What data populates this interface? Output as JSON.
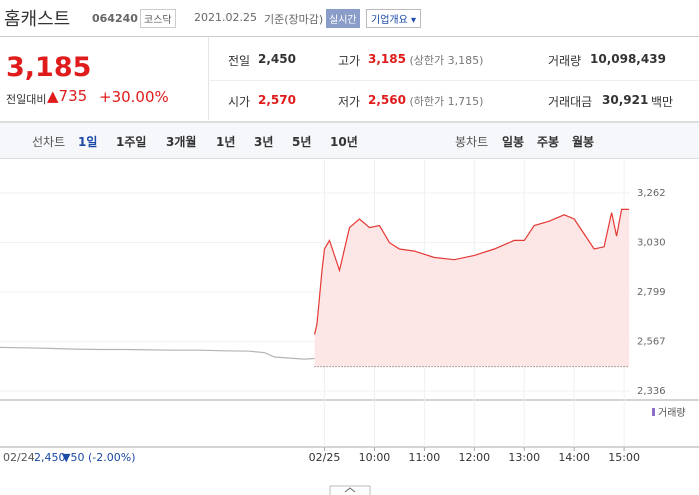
{
  "header": {
    "name": "홈캐스트",
    "code": "064240",
    "market": "코스닥",
    "date": "2021.02.25",
    "basis": "기준(장마감)",
    "realtime": "실시간",
    "overview": "기업개요"
  },
  "quote": {
    "price": "3,185",
    "change_label": "전일대비",
    "change": "735",
    "change_pct": "+30.00%"
  },
  "stats": [
    {
      "label": "전일",
      "value": "2,450"
    },
    {
      "label": "고가",
      "value": "3,185",
      "note": "(상한가 3,185)",
      "color": "#e01b1b"
    },
    {
      "label": "거래량",
      "value": "10,098,439"
    },
    {
      "label": "시가",
      "value": "2,570",
      "color": "#e01b1b"
    },
    {
      "label": "저가",
      "value": "2,560",
      "note": "(하한가 1,715)",
      "color": "#e01b1b"
    },
    {
      "label": "거래대금",
      "value": "30,921",
      "unit": "백만"
    }
  ],
  "tabs": {
    "line_label": "선차트",
    "line_tabs": [
      "1일",
      "1주일",
      "3개월",
      "1년",
      "3년",
      "5년",
      "10년"
    ],
    "active": 0,
    "candle_label": "봉차트",
    "candle_tabs": [
      "일봉",
      "주봉",
      "월봉"
    ]
  },
  "prev_day": {
    "date": "02/24",
    "close": "2,450",
    "change": "▼50",
    "change_pct": "(-2.00%)"
  },
  "chart_data": {
    "type": "line",
    "xlim": [
      2.5,
      16.5
    ],
    "ylim": [
      2294,
      3416
    ],
    "yticks": [
      {
        "value": 2336,
        "label": "2,336"
      },
      {
        "value": 2567,
        "label": "2,567"
      },
      {
        "value": 2799,
        "label": "2,799"
      },
      {
        "value": 3030,
        "label": "3,030"
      },
      {
        "value": 3262,
        "label": "3,262"
      }
    ],
    "xticks": [
      {
        "value": 9,
        "label": "02/25"
      },
      {
        "value": 10,
        "label": "10:00"
      },
      {
        "value": 11,
        "label": "11:00"
      },
      {
        "value": 12,
        "label": "12:00"
      },
      {
        "value": 13,
        "label": "13:00"
      },
      {
        "value": 14,
        "label": "14:00"
      },
      {
        "value": 15,
        "label": "15:00"
      }
    ],
    "grid": true,
    "base_line": 2450,
    "volume_label": "거래량",
    "series": [
      {
        "color": "#b5b5b5",
        "x": [
          2.5,
          3.0,
          3.5,
          4.0,
          4.5,
          5.0,
          5.5,
          6.0,
          6.5,
          7.0,
          7.5,
          7.8,
          8.0,
          8.3,
          8.6,
          8.8
        ],
        "values": [
          2540,
          2538,
          2535,
          2532,
          2530,
          2530,
          2528,
          2527,
          2527,
          2524,
          2522,
          2515,
          2495,
          2490,
          2485,
          2488
        ]
      },
      {
        "color": "#e53935",
        "fill": "#fde6e6",
        "x": [
          8.8,
          8.85,
          8.95,
          9.0,
          9.1,
          9.3,
          9.5,
          9.7,
          9.9,
          10.1,
          10.3,
          10.5,
          10.8,
          11.2,
          11.6,
          12.0,
          12.4,
          12.8,
          13.0,
          13.2,
          13.5,
          13.8,
          14.0,
          14.2,
          14.4,
          14.6,
          14.75,
          14.85,
          14.95,
          15.1
        ],
        "values": [
          2600,
          2650,
          2900,
          3000,
          3040,
          2900,
          3100,
          3140,
          3100,
          3110,
          3030,
          3000,
          2990,
          2960,
          2950,
          2970,
          3000,
          3040,
          3040,
          3110,
          3130,
          3160,
          3140,
          3070,
          3000,
          3010,
          3170,
          3060,
          3185,
          3185
        ]
      }
    ]
  }
}
